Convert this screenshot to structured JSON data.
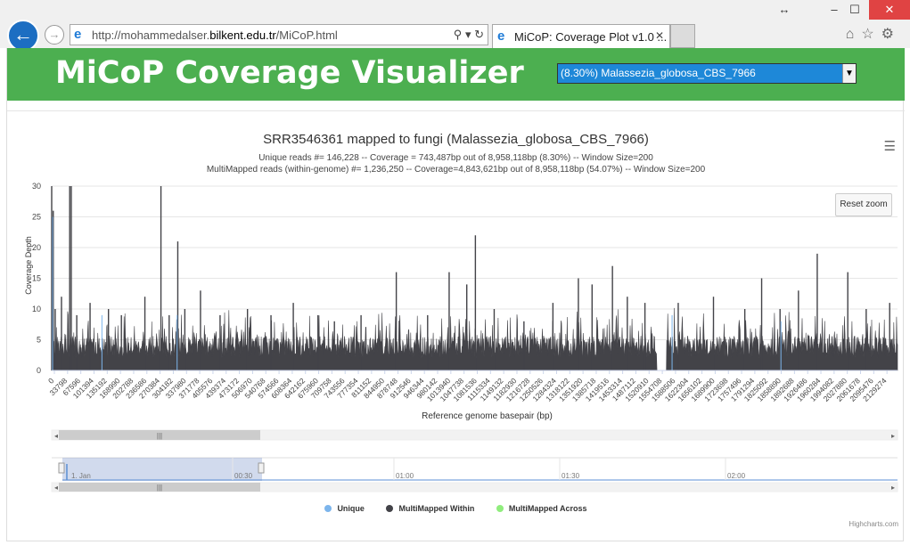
{
  "browser": {
    "url_prefix": "http://mohammedalser.",
    "url_domain": "bilkent.edu.tr",
    "url_path": "/MiCoP.html",
    "tab_title": "MiCoP: Coverage Plot v1.0 ...",
    "icons": [
      "back-icon",
      "forward-icon",
      "ie-icon",
      "search-icon",
      "refresh-icon",
      "home-icon",
      "star-icon",
      "gear-icon",
      "restore-icon",
      "minimize-icon",
      "maximize-icon",
      "close-icon"
    ]
  },
  "page": {
    "title": "MiCoP Coverage Visualizer",
    "select_value": "(8.30%) Malassezia_globosa_CBS_7966",
    "colors": {
      "banner": "#4caf50",
      "select": "#1e88d8"
    }
  },
  "chart_data": {
    "type": "area",
    "title": "SRR3546361 mapped to fungi (Malassezia_globosa_CBS_7966)",
    "subtitle_line1": "Unique reads #= 146,228 -- Coverage = 743,487bp out of 8,958,118bp (8.30%) -- Window Size=200",
    "subtitle_line2": "MultiMapped reads (within-genome) #= 1,236,250 -- Coverage=4,843,621bp out of 8,958,118bp (54.07%) -- Window Size=200",
    "xlabel": "Reference genome basepair (bp)",
    "ylabel": "Coverage Depth",
    "ylim": [
      0,
      30
    ],
    "yticks": [
      "0",
      "5",
      "10",
      "15",
      "20",
      "25",
      "30"
    ],
    "xticks": [
      "0",
      "33798",
      "67596",
      "101394",
      "135192",
      "168990",
      "202788",
      "236586",
      "270384",
      "304182",
      "337980",
      "371778",
      "405576",
      "439374",
      "473172",
      "506970",
      "540768",
      "574566",
      "608364",
      "642162",
      "675960",
      "709758",
      "743556",
      "777354",
      "811152",
      "844950",
      "878748",
      "912546",
      "946344",
      "980142",
      "1013940",
      "1047738",
      "1081536",
      "1115334",
      "1149132",
      "1182930",
      "1216728",
      "1250526",
      "1284324",
      "1318122",
      "1351920",
      "1385718",
      "1419516",
      "1453314",
      "1487112",
      "1520910",
      "1554708",
      "1588506",
      "1622304",
      "1656102",
      "1689900",
      "1723698",
      "1757496",
      "1791294",
      "1825092",
      "1858890",
      "1892688",
      "1926486",
      "1960284",
      "1994082",
      "2027880",
      "2061678",
      "2095476",
      "2129274"
    ],
    "xmax": 2160000,
    "baseline": 4,
    "gap": [
      1545000,
      1570000
    ],
    "peaks": [
      {
        "x": 0,
        "y": 30
      },
      {
        "x": 4000,
        "y": 26
      },
      {
        "x": 9000,
        "y": 10
      },
      {
        "x": 25000,
        "y": 12
      },
      {
        "x": 46000,
        "y": 30
      },
      {
        "x": 50000,
        "y": 30
      },
      {
        "x": 64000,
        "y": 9
      },
      {
        "x": 98000,
        "y": 11
      },
      {
        "x": 145000,
        "y": 10
      },
      {
        "x": 178000,
        "y": 9
      },
      {
        "x": 238000,
        "y": 12
      },
      {
        "x": 279000,
        "y": 30
      },
      {
        "x": 300000,
        "y": 9
      },
      {
        "x": 322000,
        "y": 21
      },
      {
        "x": 340000,
        "y": 10
      },
      {
        "x": 380000,
        "y": 13
      },
      {
        "x": 430000,
        "y": 9
      },
      {
        "x": 500000,
        "y": 10
      },
      {
        "x": 560000,
        "y": 9
      },
      {
        "x": 617000,
        "y": 11
      },
      {
        "x": 680000,
        "y": 9
      },
      {
        "x": 722000,
        "y": 8
      },
      {
        "x": 790000,
        "y": 9
      },
      {
        "x": 880000,
        "y": 16
      },
      {
        "x": 960000,
        "y": 9
      },
      {
        "x": 1015000,
        "y": 16
      },
      {
        "x": 1060000,
        "y": 14
      },
      {
        "x": 1082000,
        "y": 22
      },
      {
        "x": 1130000,
        "y": 10
      },
      {
        "x": 1206000,
        "y": 8
      },
      {
        "x": 1280000,
        "y": 11
      },
      {
        "x": 1345000,
        "y": 15
      },
      {
        "x": 1380000,
        "y": 14
      },
      {
        "x": 1432000,
        "y": 17
      },
      {
        "x": 1470000,
        "y": 12
      },
      {
        "x": 1515000,
        "y": 11
      },
      {
        "x": 1600000,
        "y": 11
      },
      {
        "x": 1690000,
        "y": 12
      },
      {
        "x": 1770000,
        "y": 10
      },
      {
        "x": 1813000,
        "y": 15
      },
      {
        "x": 1860000,
        "y": 10
      },
      {
        "x": 1907000,
        "y": 13
      },
      {
        "x": 1955000,
        "y": 19
      },
      {
        "x": 2033000,
        "y": 16
      },
      {
        "x": 2080000,
        "y": 10
      },
      {
        "x": 2140000,
        "y": 11
      }
    ],
    "series": [
      {
        "name": "Unique",
        "color": "#7cb5ec"
      },
      {
        "name": "MultiMapped Within",
        "color": "#434348"
      },
      {
        "name": "MultiMapped Across",
        "color": "#90ed7d"
      }
    ],
    "navigator_ticks": [
      "1. Jan",
      "00:30",
      "01:00",
      "01:30",
      "02:00"
    ],
    "reset_label": "Reset zoom",
    "credit": "Highcharts.com",
    "menu_icon": "hamburger-icon"
  }
}
